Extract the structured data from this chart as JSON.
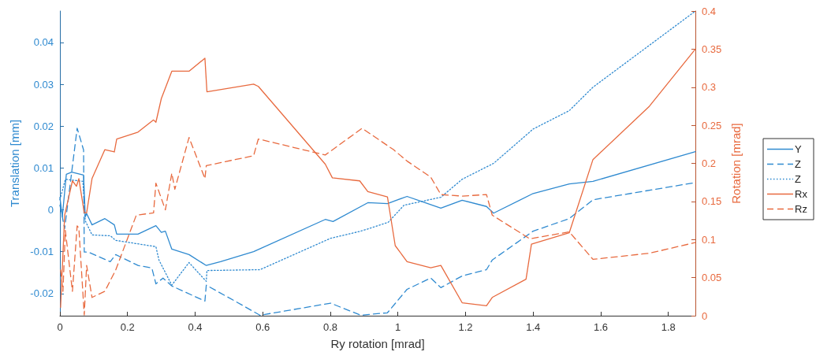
{
  "chart_data": {
    "type": "line",
    "xlabel": "Ry rotation [mrad]",
    "ylabel": "Translation [mm]",
    "y2label": "Rotation [mrad]",
    "xlim": [
      0,
      1.88
    ],
    "xticks": [
      0,
      0.2,
      0.4,
      0.6,
      0.8,
      1,
      1.2,
      1.4,
      1.6,
      1.8
    ],
    "ylim": [
      -0.0253,
      0.0475
    ],
    "yticks": [
      -0.02,
      -0.01,
      0,
      0.01,
      0.02,
      0.03,
      0.04
    ],
    "y2lim": [
      0,
      0.4
    ],
    "y2ticks": [
      0,
      0.05,
      0.1,
      0.15,
      0.2,
      0.25,
      0.3,
      0.35,
      0.4
    ],
    "grid": false,
    "legend": "right",
    "marker": "none",
    "series": [
      {
        "name": "Y",
        "color": "#2f8ad0",
        "line_style": "solid",
        "x": [
          0,
          0.007,
          0.019,
          0.035,
          0.07,
          0.075,
          0.079,
          0.095,
          0.133,
          0.161,
          0.168,
          0.231,
          0.284,
          0.3,
          0.312,
          0.331,
          0.382,
          0.433,
          0.475,
          0.573,
          0.785,
          0.808,
          0.911,
          0.969,
          1.027,
          1.127,
          1.19,
          1.262,
          1.283,
          1.4,
          1.507,
          1.577,
          1.88
        ],
        "values": [
          0.003,
          -0.0017,
          0.0085,
          0.009,
          0.0083,
          -0.0017,
          -0.0009,
          -0.0036,
          -0.0021,
          -0.0036,
          -0.0058,
          -0.0058,
          -0.0038,
          -0.0054,
          -0.0051,
          -0.0094,
          -0.0107,
          -0.0133,
          -0.0124,
          -0.01,
          -0.0023,
          -0.0028,
          0.0017,
          0.0015,
          0.0032,
          0.0004,
          0.0023,
          0.0008,
          -0.0008,
          0.0039,
          0.0062,
          0.0068,
          0.0139
        ]
      },
      {
        "name": "Z",
        "color": "#2f8ad0",
        "line_style": "dashed",
        "x": [
          0,
          0.014,
          0.051,
          0.07,
          0.072,
          0.084,
          0.149,
          0.165,
          0.231,
          0.272,
          0.284,
          0.305,
          0.331,
          0.429,
          0.433,
          0.522,
          0.592,
          0.801,
          0.89,
          0.969,
          1.027,
          1.097,
          1.127,
          1.19,
          1.262,
          1.279,
          1.4,
          1.507,
          1.577,
          1.872
        ],
        "values": [
          0.0011,
          -0.0045,
          0.0195,
          0.0143,
          -0.0101,
          -0.0101,
          -0.0124,
          -0.0107,
          -0.0133,
          -0.0139,
          -0.0177,
          -0.0163,
          -0.0182,
          -0.0218,
          -0.018,
          -0.022,
          -0.0252,
          -0.0223,
          -0.0252,
          -0.0246,
          -0.019,
          -0.0163,
          -0.0186,
          -0.0158,
          -0.0143,
          -0.012,
          -0.0051,
          -0.0021,
          0.0024,
          0.0064
        ]
      },
      {
        "name": "Z",
        "color": "#2f8ad0",
        "line_style": "dotted",
        "x": [
          0,
          0.016,
          0.068,
          0.075,
          0.095,
          0.149,
          0.165,
          0.284,
          0.293,
          0.331,
          0.382,
          0.433,
          0.435,
          0.592,
          0.801,
          0.89,
          0.971,
          1.018,
          1.127,
          1.19,
          1.283,
          1.4,
          1.507,
          1.577,
          1.877
        ],
        "values": [
          0.0024,
          0.0073,
          0.0068,
          -0.0026,
          -0.006,
          -0.0062,
          -0.0073,
          -0.0088,
          -0.012,
          -0.018,
          -0.0126,
          -0.0171,
          -0.0145,
          -0.0143,
          -0.0068,
          -0.0051,
          -0.003,
          0.0011,
          0.003,
          0.0073,
          0.0111,
          0.0193,
          0.0237,
          0.0293,
          0.0473
        ]
      },
      {
        "name": "Rx",
        "color": "#e86a3f",
        "line_style": "solid",
        "axis": "y2",
        "x": [
          0.002,
          0.014,
          0.037,
          0.049,
          0.056,
          0.072,
          0.079,
          0.095,
          0.133,
          0.161,
          0.168,
          0.231,
          0.277,
          0.284,
          0.3,
          0.331,
          0.382,
          0.429,
          0.435,
          0.573,
          0.587,
          0.785,
          0.806,
          0.887,
          0.911,
          0.969,
          0.992,
          1.027,
          1.097,
          1.127,
          1.19,
          1.262,
          1.279,
          1.379,
          1.395,
          1.507,
          1.577,
          1.744,
          1.88
        ],
        "values": [
          0.011,
          0.132,
          0.177,
          0.17,
          0.18,
          0.135,
          0.135,
          0.18,
          0.218,
          0.215,
          0.232,
          0.241,
          0.257,
          0.254,
          0.285,
          0.321,
          0.321,
          0.338,
          0.294,
          0.304,
          0.301,
          0.199,
          0.181,
          0.177,
          0.163,
          0.156,
          0.092,
          0.071,
          0.063,
          0.066,
          0.017,
          0.013,
          0.024,
          0.048,
          0.094,
          0.109,
          0.205,
          0.275,
          0.35
        ]
      },
      {
        "name": "Rz",
        "color": "#e86a3f",
        "line_style": "dashed",
        "axis": "y2",
        "x": [
          0.002,
          0.009,
          0.016,
          0.037,
          0.051,
          0.056,
          0.072,
          0.079,
          0.095,
          0.133,
          0.165,
          0.226,
          0.277,
          0.284,
          0.312,
          0.331,
          0.34,
          0.382,
          0.429,
          0.433,
          0.573,
          0.587,
          0.785,
          0.894,
          0.987,
          1.027,
          1.097,
          1.127,
          1.19,
          1.262,
          1.279,
          1.39,
          1.507,
          1.577,
          1.744,
          1.879
        ],
        "values": [
          0.06,
          0.032,
          0.112,
          0.032,
          0.118,
          0.115,
          0.001,
          0.066,
          0.024,
          0.032,
          0.06,
          0.132,
          0.135,
          0.174,
          0.139,
          0.187,
          0.166,
          0.234,
          0.18,
          0.197,
          0.21,
          0.232,
          0.211,
          0.246,
          0.218,
          0.203,
          0.182,
          0.159,
          0.157,
          0.159,
          0.132,
          0.101,
          0.11,
          0.074,
          0.082,
          0.096
        ]
      }
    ]
  }
}
